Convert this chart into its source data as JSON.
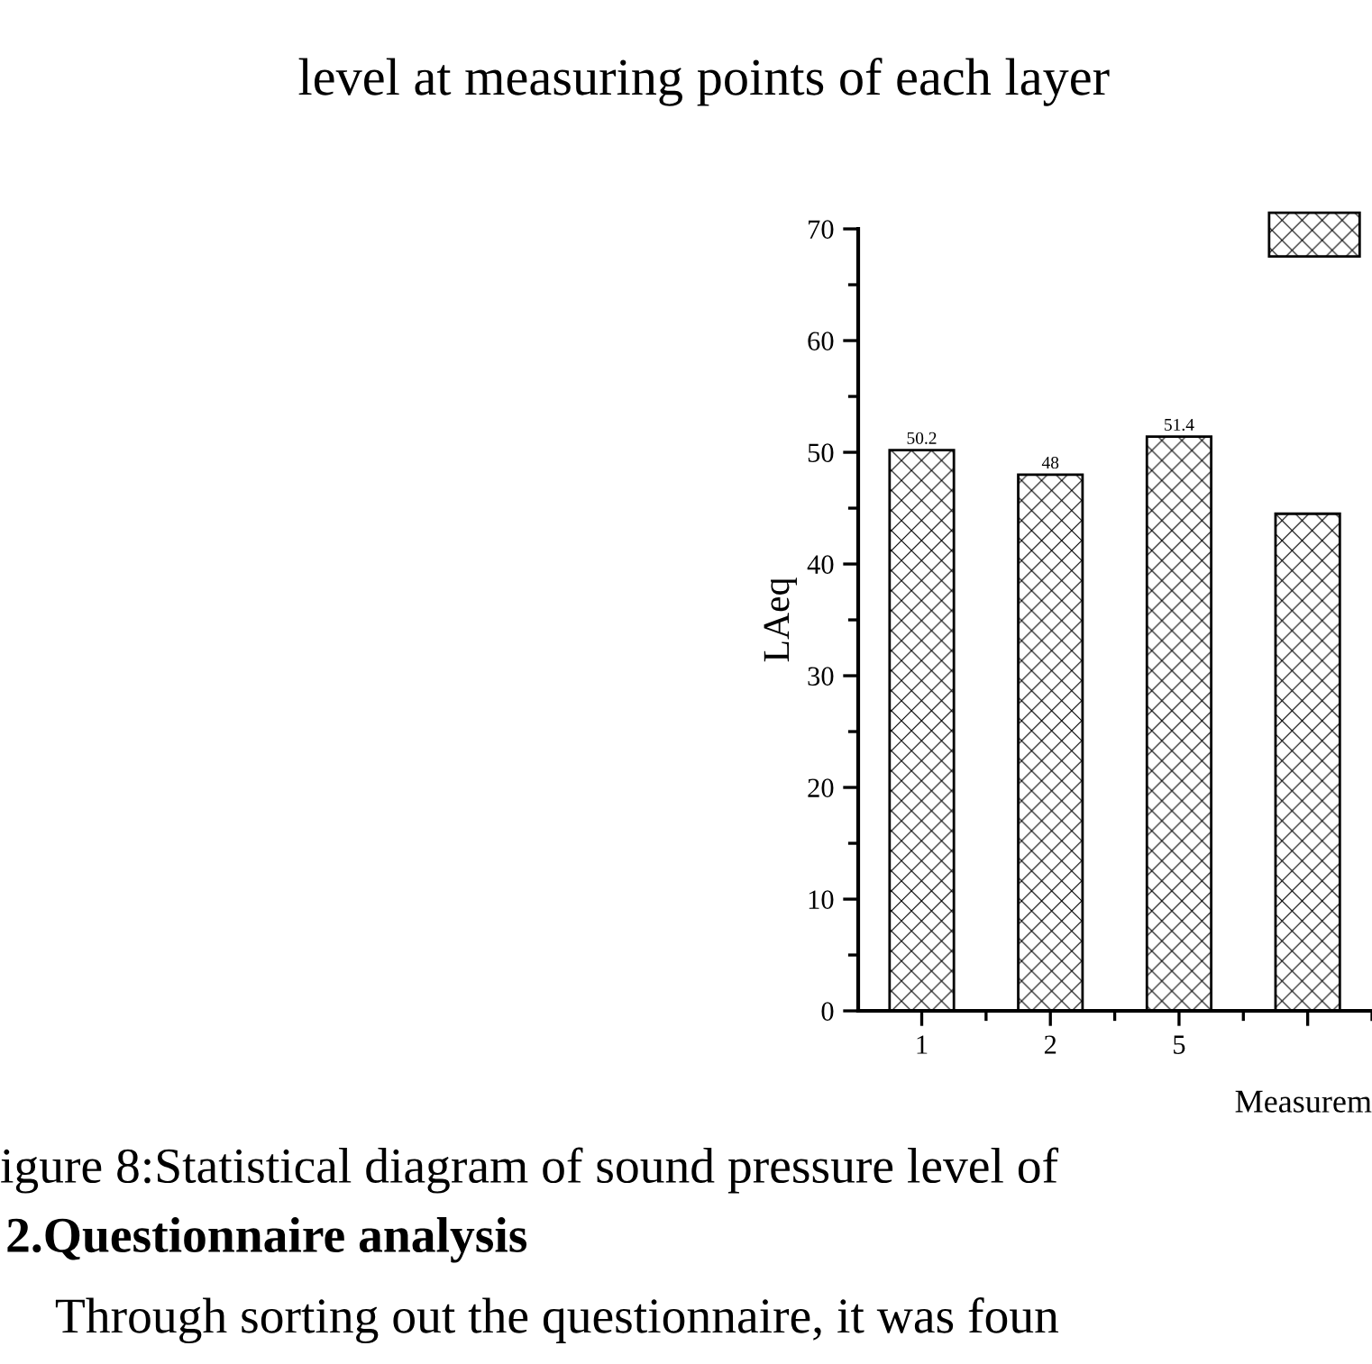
{
  "chart_data": {
    "type": "bar",
    "title": "level at measuring points of each layer",
    "xlabel": "Measurem",
    "ylabel": "LAeq",
    "categories": [
      "1",
      "2",
      "5",
      null
    ],
    "series": [
      {
        "color": "#000000",
        "values": [
          50.2,
          48,
          51.4,
          44.5
        ],
        "value_labels": [
          "50.2",
          "48",
          "51.4",
          null
        ]
      }
    ],
    "ylim": [
      0,
      70
    ],
    "yticks": [
      0,
      10,
      20,
      30,
      40,
      50,
      60,
      70
    ],
    "grid": false,
    "legend": false,
    "annotations": [
      "igure 8:Statistical diagram of sound pressure level of",
      "2.Questionnaire analysis",
      "Through sorting out the questionnaire, it was foun"
    ]
  }
}
